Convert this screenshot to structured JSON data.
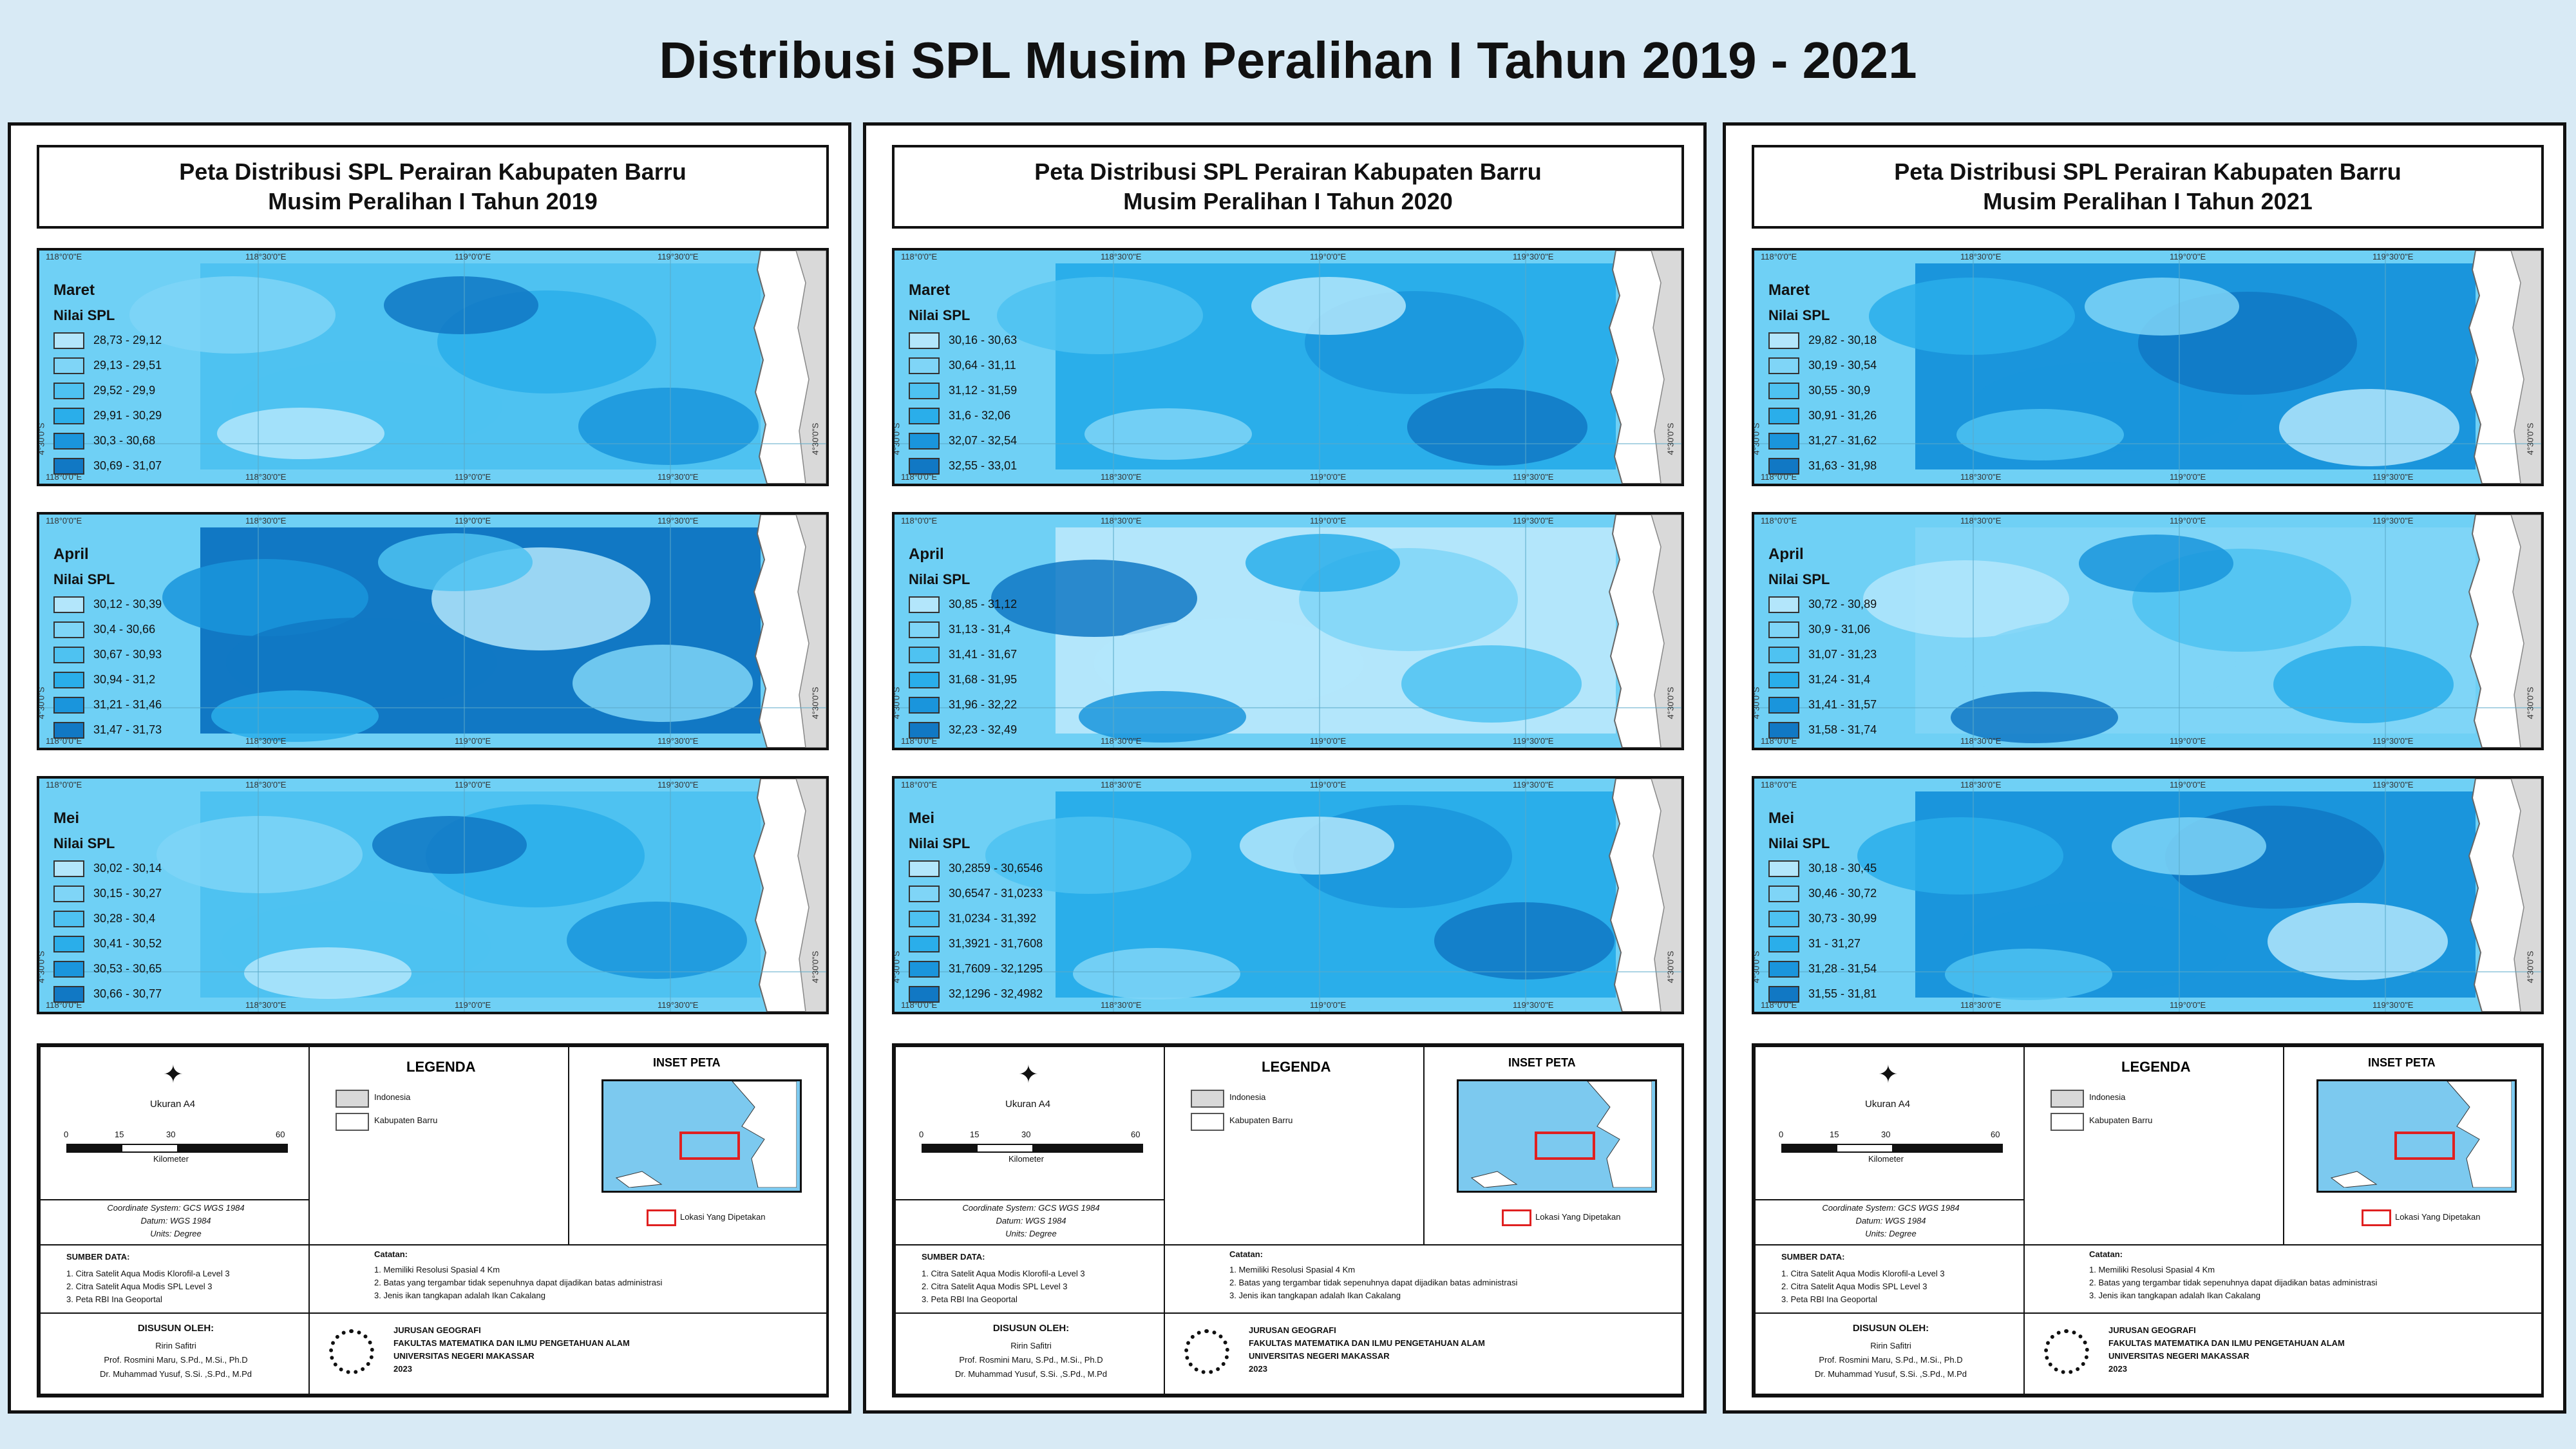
{
  "page_title": "Distribusi SPL Musim Peralihan I Tahun 2019 - 2021",
  "colors": {
    "background": "#d8eaf5",
    "sea_base": "#6fd0f5",
    "class_colors": [
      "#b3e6fb",
      "#7fd5f7",
      "#4ec2f1",
      "#2aaeea",
      "#1a95dc",
      "#1178c4"
    ],
    "land": "#ffffff",
    "inset_frame": "#e02020"
  },
  "coordinate_labels": {
    "lon_top": [
      "118°0'0\"E",
      "118°30'0\"E",
      "119°0'0\"E",
      "119°30'0\"E"
    ],
    "lon_bottom": [
      "118°0'0\"E",
      "118°30'0\"E",
      "119°0'0\"E",
      "119°30'0\"E"
    ],
    "lat_side": "4°30'0\"S"
  },
  "sheets": [
    {
      "title_line1": "Peta Distribusi SPL Perairan Kabupaten Barru",
      "title_line2": "Musim Peralihan I Tahun 2019",
      "panels": [
        {
          "month": "Maret",
          "legend_title": "Nilai SPL",
          "classes": [
            "28,73 - 29,12",
            "29,13 - 29,51",
            "29,52 - 29,9",
            "29,91 - 30,29",
            "30,3 - 30,68",
            "30,69 - 31,07"
          ]
        },
        {
          "month": "April",
          "legend_title": "Nilai SPL",
          "classes": [
            "30,12 - 30,39",
            "30,4 - 30,66",
            "30,67 - 30,93",
            "30,94 - 31,2",
            "31,21 - 31,46",
            "31,47 - 31,73"
          ]
        },
        {
          "month": "Mei",
          "legend_title": "Nilai SPL",
          "classes": [
            "30,02 - 30,14",
            "30,15 - 30,27",
            "30,28 - 30,4",
            "30,41 - 30,52",
            "30,53 - 30,65",
            "30,66 - 30,77"
          ]
        }
      ]
    },
    {
      "title_line1": "Peta Distribusi SPL Perairan Kabupaten Barru",
      "title_line2": "Musim Peralihan I Tahun 2020",
      "panels": [
        {
          "month": "Maret",
          "legend_title": "Nilai SPL",
          "classes": [
            "30,16 - 30,63",
            "30,64 - 31,11",
            "31,12 - 31,59",
            "31,6 - 32,06",
            "32,07 - 32,54",
            "32,55 - 33,01"
          ]
        },
        {
          "month": "April",
          "legend_title": "Nilai SPL",
          "classes": [
            "30,85 - 31,12",
            "31,13 - 31,4",
            "31,41 - 31,67",
            "31,68 - 31,95",
            "31,96 - 32,22",
            "32,23 - 32,49"
          ]
        },
        {
          "month": "Mei",
          "legend_title": "Nilai SPL",
          "classes": [
            "30,2859 - 30,6546",
            "30,6547 - 31,0233",
            "31,0234 - 31,392",
            "31,3921 - 31,7608",
            "31,7609 - 32,1295",
            "32,1296 - 32,4982"
          ]
        }
      ]
    },
    {
      "title_line1": "Peta Distribusi SPL Perairan Kabupaten Barru",
      "title_line2": "Musim Peralihan I Tahun 2021",
      "panels": [
        {
          "month": "Maret",
          "legend_title": "Nilai SPL",
          "classes": [
            "29,82 - 30,18",
            "30,19 - 30,54",
            "30,55 - 30,9",
            "30,91 - 31,26",
            "31,27 - 31,62",
            "31,63 - 31,98"
          ]
        },
        {
          "month": "April",
          "legend_title": "Nilai SPL",
          "classes": [
            "30,72 - 30,89",
            "30,9 - 31,06",
            "31,07 - 31,23",
            "31,24 - 31,4",
            "31,41 - 31,57",
            "31,58 - 31,74"
          ]
        },
        {
          "month": "Mei",
          "legend_title": "Nilai SPL",
          "classes": [
            "30,18 - 30,45",
            "30,46 - 30,72",
            "30,73 - 30,99",
            "31 - 31,27",
            "31,28 - 31,54",
            "31,55 - 31,81"
          ]
        }
      ]
    }
  ],
  "info": {
    "size_label": "Ukuran A4",
    "scale_ticks": [
      "0",
      "15",
      "30",
      "60"
    ],
    "scale_unit": "Kilometer",
    "coord_system": "Coordinate System: GCS WGS 1984",
    "datum": "Datum: WGS 1984",
    "units": "Units: Degree",
    "legend_heading": "LEGENDA",
    "legend_items": [
      "Indonesia",
      "Kabupaten Barru"
    ],
    "inset_heading": "INSET PETA",
    "inset_caption": "Lokasi Yang Dipetakan",
    "sources_heading": "SUMBER DATA:",
    "sources": [
      "1. Citra Satelit Aqua Modis Klorofil-a Level 3",
      "2. Citra Satelit Aqua Modis SPL Level 3",
      "3. Peta RBI Ina Geoportal"
    ],
    "notes_heading": "Catatan:",
    "notes": [
      "1. Memiliki Resolusi Spasial 4 Km",
      "2. Batas yang tergambar tidak sepenuhnya dapat dijadikan batas administrasi",
      "3. Jenis ikan tangkapan adalah Ikan Cakalang"
    ],
    "author_heading": "DISUSUN OLEH:",
    "authors": [
      "Ririn Safitri",
      "Prof. Rosmini Maru, S.Pd., M.Si., Ph.D",
      "Dr. Muhammad Yusuf, S.Si. ,S.Pd., M.Pd"
    ],
    "institution": [
      "JURUSAN GEOGRAFI",
      "FAKULTAS MATEMATIKA DAN ILMU PENGETAHUAN ALAM",
      "UNIVERSITAS NEGERI MAKASSAR",
      "2023"
    ]
  }
}
